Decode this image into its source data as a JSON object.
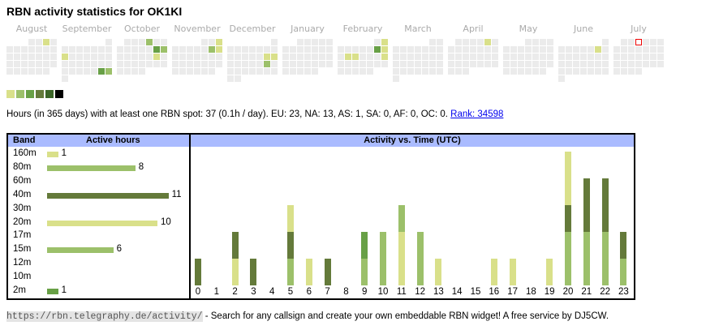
{
  "title": "RBN activity statistics for OK1KI",
  "colors": {
    "empty": "#ebebeb",
    "levels": [
      "#d9e08a",
      "#9cc06a",
      "#68a046",
      "#647a3a",
      "#3b6527",
      "#000000"
    ],
    "header": "#aabbff"
  },
  "heatmap": {
    "months": [
      {
        "label": "August",
        "year": 2024,
        "month": 8,
        "active": [
          [
            3,
            1
          ]
        ]
      },
      {
        "label": "September",
        "year": 2024,
        "month": 9,
        "active": [
          [
            9,
            1
          ],
          [
            28,
            3
          ],
          [
            29,
            2
          ]
        ]
      },
      {
        "label": "October",
        "year": 2024,
        "month": 10,
        "active": [
          [
            4,
            2
          ],
          [
            12,
            3
          ],
          [
            13,
            2
          ],
          [
            19,
            1
          ]
        ]
      },
      {
        "label": "November",
        "year": 2024,
        "month": 11,
        "active": [
          [
            3,
            1
          ],
          [
            9,
            2
          ],
          [
            10,
            1
          ]
        ]
      },
      {
        "label": "December",
        "year": 2024,
        "month": 12,
        "active": [
          [
            14,
            1
          ],
          [
            15,
            1
          ],
          [
            21,
            2
          ]
        ]
      },
      {
        "label": "January",
        "year": 2025,
        "month": 1,
        "active": []
      },
      {
        "label": "February",
        "year": 2025,
        "month": 2,
        "active": [
          [
            2,
            1
          ],
          [
            8,
            3
          ],
          [
            9,
            1
          ],
          [
            11,
            1
          ],
          [
            12,
            1
          ],
          [
            16,
            1
          ]
        ]
      },
      {
        "label": "March",
        "year": 2025,
        "month": 3,
        "active": []
      },
      {
        "label": "April",
        "year": 2025,
        "month": 4,
        "active": [
          [
            5,
            1
          ]
        ]
      },
      {
        "label": "May",
        "year": 2025,
        "month": 5,
        "active": []
      },
      {
        "label": "June",
        "year": 2025,
        "month": 6,
        "active": [
          [
            7,
            1
          ]
        ]
      },
      {
        "label": "July",
        "year": 2025,
        "month": 7,
        "active": [],
        "today": 3
      }
    ]
  },
  "summary": {
    "text": "Hours (in 365 days) with at least one RBN spot: 37 (0.1h / day). EU: 23, NA: 13, AS: 1, SA: 0, AF: 0, OC: 0.",
    "rank_link": "Rank: 34598"
  },
  "bands": {
    "header_band": "Band",
    "header_hours": "Active hours",
    "rows": [
      {
        "band": "160m",
        "hours": 1,
        "value_label": "1",
        "level": 0
      },
      {
        "band": "80m",
        "hours": 8,
        "value_label": "8",
        "level": 1
      },
      {
        "band": "60m",
        "hours": 0,
        "value_label": "",
        "level": 0
      },
      {
        "band": "40m",
        "hours": 11,
        "value_label": "11",
        "level": 3
      },
      {
        "band": "30m",
        "hours": 0,
        "value_label": "",
        "level": 0
      },
      {
        "band": "20m",
        "hours": 10,
        "value_label": "10",
        "level": 0
      },
      {
        "band": "17m",
        "hours": 0,
        "value_label": "",
        "level": 0
      },
      {
        "band": "15m",
        "hours": 6,
        "value_label": "6",
        "level": 1
      },
      {
        "band": "12m",
        "hours": 0,
        "value_label": "",
        "level": 0
      },
      {
        "band": "10m",
        "hours": 0,
        "value_label": "",
        "level": 0
      },
      {
        "band": "2m",
        "hours": 1,
        "value_label": "1",
        "level": 2
      }
    ]
  },
  "chart_data": {
    "type": "bar",
    "title": "Activity vs. Time (UTC)",
    "categories": [
      "0",
      "1",
      "2",
      "3",
      "4",
      "5",
      "6",
      "7",
      "8",
      "9",
      "10",
      "11",
      "12",
      "13",
      "14",
      "15",
      "16",
      "17",
      "18",
      "19",
      "20",
      "21",
      "22",
      "23"
    ],
    "stacks_note": "segments bottom-to-top as [color level, units]",
    "stacks": [
      [
        [
          3,
          1
        ]
      ],
      [],
      [
        [
          0,
          1
        ],
        [
          3,
          1
        ]
      ],
      [
        [
          3,
          1
        ]
      ],
      [],
      [
        [
          1,
          1
        ],
        [
          3,
          1
        ],
        [
          0,
          1
        ]
      ],
      [
        [
          0,
          1
        ]
      ],
      [
        [
          3,
          1
        ]
      ],
      [],
      [
        [
          1,
          1
        ],
        [
          2,
          1
        ]
      ],
      [
        [
          1,
          2
        ]
      ],
      [
        [
          0,
          2
        ],
        [
          1,
          1
        ]
      ],
      [
        [
          1,
          2
        ]
      ],
      [
        [
          0,
          1
        ]
      ],
      [],
      [],
      [
        [
          0,
          1
        ]
      ],
      [
        [
          0,
          1
        ]
      ],
      [],
      [
        [
          0,
          1
        ]
      ],
      [
        [
          1,
          2
        ],
        [
          3,
          1
        ],
        [
          0,
          2
        ]
      ],
      [
        [
          1,
          2
        ],
        [
          3,
          2
        ]
      ],
      [
        [
          1,
          2
        ],
        [
          3,
          2
        ]
      ],
      [
        [
          1,
          1
        ],
        [
          3,
          1
        ]
      ]
    ],
    "ylim": [
      0,
      5
    ]
  },
  "footer": {
    "url": "https://rbn.telegraphy.de/activity/",
    "text": " - Search for any callsign and create your own embeddable RBN widget! A free service by DJ5CW."
  }
}
